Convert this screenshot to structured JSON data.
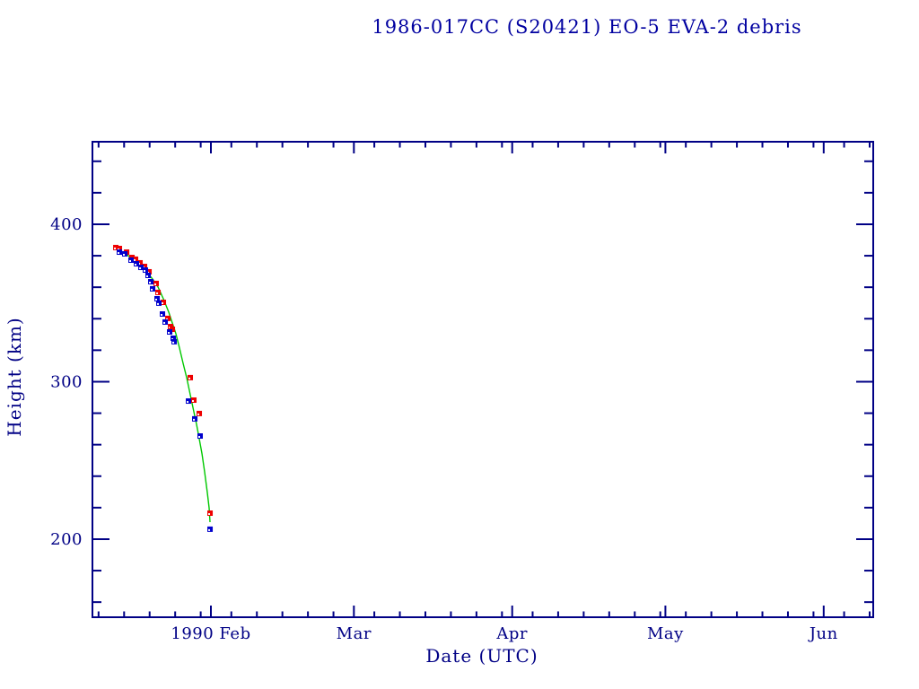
{
  "title": "1986-017CC (S20421) EO-5 EVA-2 debris",
  "colors": {
    "background": "#ffffff",
    "axis": "#000085",
    "text": "#000085",
    "title_text": "#0000a0",
    "red_marker": "#ee0000",
    "blue_marker": "#0000cc",
    "green_line": "#00c800"
  },
  "chart_data": {
    "type": "scatter",
    "title": "1986-017CC (S20421) EO-5 EVA-2 debris",
    "xlabel": "Date (UTC)",
    "ylabel": "Height (km)",
    "grid": false,
    "legend": null,
    "x_axis": {
      "unit": "day-of-year-1990",
      "lim": [
        8.8,
        161.7
      ],
      "major_ticks": [
        {
          "value": 32,
          "label": "1990 Feb"
        },
        {
          "value": 60,
          "label": "Mar"
        },
        {
          "value": 91,
          "label": "Apr"
        },
        {
          "value": 121,
          "label": "May"
        },
        {
          "value": 152,
          "label": "Jun"
        }
      ],
      "minor_ticks": [
        10,
        15,
        20,
        25,
        30,
        36,
        41,
        46,
        51,
        56,
        64,
        69,
        74,
        79,
        84,
        89,
        95,
        100,
        105,
        110,
        115,
        120,
        125,
        130,
        135,
        140,
        145,
        150,
        156,
        161
      ]
    },
    "y_axis": {
      "lim": [
        150.4,
        452.4
      ],
      "major_ticks": [
        {
          "value": 200,
          "label": "200"
        },
        {
          "value": 300,
          "label": "300"
        },
        {
          "value": 400,
          "label": "400"
        }
      ],
      "minor_step": 20
    },
    "series": [
      {
        "name": "red-points",
        "type": "scatter",
        "marker": "filled-square",
        "color": "#ee0000",
        "points": [
          [
            13.38,
            385.2
          ],
          [
            14.08,
            384.6
          ],
          [
            15.49,
            382.3
          ],
          [
            16.54,
            378.9
          ],
          [
            17.24,
            377.8
          ],
          [
            18.12,
            375.5
          ],
          [
            19.0,
            373.2
          ],
          [
            19.88,
            369.8
          ],
          [
            21.28,
            362.4
          ],
          [
            21.64,
            356.7
          ],
          [
            22.69,
            350.4
          ],
          [
            23.57,
            340.2
          ],
          [
            24.1,
            335.0
          ],
          [
            24.45,
            333.3
          ],
          [
            27.96,
            302.6
          ],
          [
            28.66,
            288.3
          ],
          [
            29.72,
            279.8
          ],
          [
            31.83,
            216.5
          ]
        ]
      },
      {
        "name": "blue-points",
        "type": "scatter",
        "marker": "filled-square",
        "color": "#0000cc",
        "points": [
          [
            14.08,
            382.3
          ],
          [
            15.13,
            381.2
          ],
          [
            16.36,
            377.2
          ],
          [
            17.42,
            374.9
          ],
          [
            18.3,
            372.6
          ],
          [
            19.17,
            370.9
          ],
          [
            19.7,
            367.5
          ],
          [
            20.23,
            363.5
          ],
          [
            20.58,
            359.0
          ],
          [
            21.46,
            352.7
          ],
          [
            21.81,
            349.9
          ],
          [
            22.51,
            343.0
          ],
          [
            23.04,
            337.9
          ],
          [
            23.92,
            331.6
          ],
          [
            24.62,
            327.6
          ],
          [
            24.8,
            325.4
          ],
          [
            27.61,
            287.7
          ],
          [
            28.84,
            276.4
          ],
          [
            29.89,
            265.5
          ],
          [
            31.83,
            206.3
          ]
        ]
      },
      {
        "name": "decay-fit-line",
        "type": "line",
        "color": "#00c800",
        "points": [
          [
            13.55,
            384.6
          ],
          [
            15.31,
            381.2
          ],
          [
            17.07,
            377.2
          ],
          [
            18.82,
            372.1
          ],
          [
            20.58,
            365.2
          ],
          [
            21.64,
            360.1
          ],
          [
            22.69,
            352.7
          ],
          [
            23.74,
            344.2
          ],
          [
            24.45,
            337.3
          ],
          [
            25.15,
            330.5
          ],
          [
            25.85,
            321.4
          ],
          [
            26.55,
            311.7
          ],
          [
            27.26,
            302.6
          ],
          [
            27.96,
            291.7
          ],
          [
            28.66,
            280.9
          ],
          [
            29.19,
            272.9
          ],
          [
            29.72,
            263.8
          ],
          [
            30.25,
            254.1
          ],
          [
            30.77,
            242.7
          ],
          [
            31.3,
            229.6
          ],
          [
            31.65,
            219.9
          ],
          [
            31.83,
            210.8
          ]
        ]
      }
    ]
  }
}
